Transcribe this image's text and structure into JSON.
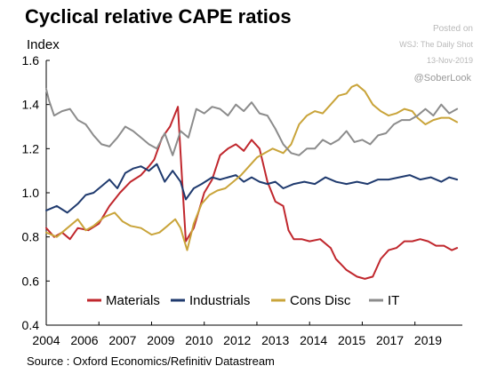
{
  "header": {
    "title": "Cyclical relative CAPE ratios",
    "posted_on": "Posted on",
    "publisher": "WSJ: The Daily Shot",
    "date": "13-Nov-2019",
    "handle": "@SoberLook"
  },
  "footer": {
    "source": "Source : Oxford Economics/Refinitiv Datastream"
  },
  "chart_data": {
    "type": "line",
    "title": "Cyclical relative CAPE ratios",
    "ylabel": "Index",
    "xlabel": "",
    "ylim": [
      0.4,
      1.6
    ],
    "yticks": [
      0.4,
      0.6,
      0.8,
      1.0,
      1.2,
      1.4,
      1.6
    ],
    "ytick_labels": [
      "0.4",
      "0.6",
      "0.8",
      "1.0",
      "1.2",
      "1.4",
      "1.6"
    ],
    "xlim": [
      2004,
      2019.8
    ],
    "xticks": [
      2004,
      2006,
      2008,
      2010,
      2012,
      2014,
      2016,
      2018
    ],
    "xtick_labels": [
      "2004",
      "2006",
      "2007",
      "2009",
      "2010",
      "2012",
      "2013",
      "2014",
      "2015",
      "2017",
      "2019"
    ],
    "xtick_positions": [
      2004,
      2005.45,
      2006.9,
      2008.35,
      2009.8,
      2011.25,
      2012.7,
      2014.15,
      2015.6,
      2017.05,
      2018.5
    ],
    "legend_position": "bottom",
    "grid": false,
    "series": [
      {
        "name": "Materials",
        "color": "#c0272d",
        "x": [
          2004,
          2004.3,
          2004.6,
          2004.9,
          2005.2,
          2005.6,
          2006.0,
          2006.4,
          2006.8,
          2007.2,
          2007.6,
          2007.9,
          2008.1,
          2008.4,
          2008.7,
          2009.0,
          2009.15,
          2009.3,
          2009.6,
          2010.0,
          2010.3,
          2010.6,
          2010.9,
          2011.2,
          2011.5,
          2011.8,
          2012.1,
          2012.4,
          2012.7,
          2013.0,
          2013.2,
          2013.4,
          2013.7,
          2014.0,
          2014.4,
          2014.8,
          2015.0,
          2015.4,
          2015.8,
          2016.1,
          2016.4,
          2016.7,
          2017.0,
          2017.3,
          2017.6,
          2017.9,
          2018.2,
          2018.5,
          2018.8,
          2019.1,
          2019.4,
          2019.6
        ],
        "values": [
          0.84,
          0.8,
          0.82,
          0.79,
          0.84,
          0.83,
          0.86,
          0.94,
          1.0,
          1.05,
          1.08,
          1.12,
          1.15,
          1.25,
          1.3,
          1.39,
          1.08,
          0.78,
          0.84,
          1.0,
          1.06,
          1.17,
          1.2,
          1.22,
          1.19,
          1.24,
          1.2,
          1.05,
          0.96,
          0.94,
          0.83,
          0.79,
          0.79,
          0.78,
          0.79,
          0.75,
          0.7,
          0.65,
          0.62,
          0.61,
          0.62,
          0.7,
          0.74,
          0.75,
          0.78,
          0.78,
          0.79,
          0.78,
          0.76,
          0.76,
          0.74,
          0.75
        ]
      },
      {
        "name": "Industrials",
        "color": "#1f3a6e",
        "x": [
          2004,
          2004.4,
          2004.8,
          2005.2,
          2005.5,
          2005.8,
          2006.1,
          2006.4,
          2006.7,
          2007.0,
          2007.3,
          2007.6,
          2007.9,
          2008.2,
          2008.5,
          2008.8,
          2009.1,
          2009.3,
          2009.6,
          2009.9,
          2010.3,
          2010.6,
          2010.9,
          2011.2,
          2011.5,
          2011.8,
          2012.1,
          2012.4,
          2012.7,
          2013.0,
          2013.4,
          2013.8,
          2014.2,
          2014.6,
          2015.0,
          2015.4,
          2015.8,
          2016.2,
          2016.6,
          2017.0,
          2017.4,
          2017.8,
          2018.2,
          2018.6,
          2019.0,
          2019.3,
          2019.6
        ],
        "values": [
          0.92,
          0.94,
          0.91,
          0.95,
          0.99,
          1.0,
          1.03,
          1.06,
          1.02,
          1.09,
          1.11,
          1.12,
          1.1,
          1.13,
          1.05,
          1.1,
          1.05,
          0.97,
          1.02,
          1.04,
          1.07,
          1.06,
          1.07,
          1.08,
          1.05,
          1.07,
          1.05,
          1.04,
          1.05,
          1.02,
          1.04,
          1.05,
          1.04,
          1.07,
          1.05,
          1.04,
          1.05,
          1.04,
          1.06,
          1.06,
          1.07,
          1.08,
          1.06,
          1.07,
          1.05,
          1.07,
          1.06
        ]
      },
      {
        "name": "Cons Disc",
        "color": "#c9a43a",
        "x": [
          2004,
          2004.4,
          2004.8,
          2005.2,
          2005.5,
          2005.8,
          2006.2,
          2006.6,
          2006.9,
          2007.2,
          2007.6,
          2008.0,
          2008.3,
          2008.6,
          2008.9,
          2009.1,
          2009.2,
          2009.35,
          2009.6,
          2009.9,
          2010.2,
          2010.5,
          2010.8,
          2011.1,
          2011.4,
          2011.7,
          2012.0,
          2012.3,
          2012.6,
          2013.0,
          2013.3,
          2013.6,
          2013.9,
          2014.2,
          2014.5,
          2014.8,
          2015.1,
          2015.4,
          2015.6,
          2015.8,
          2016.1,
          2016.4,
          2016.7,
          2017.0,
          2017.3,
          2017.6,
          2017.9,
          2018.1,
          2018.4,
          2018.7,
          2019.0,
          2019.3,
          2019.6
        ],
        "values": [
          0.82,
          0.8,
          0.84,
          0.88,
          0.83,
          0.85,
          0.89,
          0.91,
          0.87,
          0.85,
          0.84,
          0.81,
          0.82,
          0.85,
          0.88,
          0.84,
          0.8,
          0.74,
          0.86,
          0.95,
          0.99,
          1.01,
          1.02,
          1.05,
          1.08,
          1.12,
          1.16,
          1.18,
          1.2,
          1.18,
          1.22,
          1.31,
          1.35,
          1.37,
          1.36,
          1.4,
          1.44,
          1.45,
          1.48,
          1.49,
          1.46,
          1.4,
          1.37,
          1.35,
          1.36,
          1.38,
          1.37,
          1.34,
          1.31,
          1.33,
          1.34,
          1.34,
          1.32
        ]
      },
      {
        "name": "IT",
        "color": "#8c8c8c",
        "x": [
          2004,
          2004.1,
          2004.3,
          2004.6,
          2004.9,
          2005.2,
          2005.5,
          2005.8,
          2006.1,
          2006.4,
          2006.7,
          2007.0,
          2007.3,
          2007.6,
          2007.9,
          2008.2,
          2008.5,
          2008.8,
          2009.1,
          2009.4,
          2009.7,
          2010.0,
          2010.3,
          2010.6,
          2010.9,
          2011.2,
          2011.5,
          2011.8,
          2012.1,
          2012.4,
          2012.7,
          2013.0,
          2013.3,
          2013.6,
          2013.9,
          2014.2,
          2014.5,
          2014.8,
          2015.1,
          2015.4,
          2015.7,
          2016.0,
          2016.3,
          2016.6,
          2016.9,
          2017.2,
          2017.5,
          2017.8,
          2018.1,
          2018.4,
          2018.7,
          2019.0,
          2019.3,
          2019.6
        ],
        "values": [
          1.47,
          1.42,
          1.35,
          1.37,
          1.38,
          1.33,
          1.31,
          1.26,
          1.22,
          1.21,
          1.25,
          1.3,
          1.28,
          1.25,
          1.22,
          1.2,
          1.27,
          1.17,
          1.28,
          1.25,
          1.38,
          1.36,
          1.39,
          1.38,
          1.35,
          1.4,
          1.37,
          1.41,
          1.36,
          1.35,
          1.29,
          1.22,
          1.18,
          1.17,
          1.2,
          1.2,
          1.24,
          1.22,
          1.24,
          1.28,
          1.23,
          1.24,
          1.22,
          1.26,
          1.27,
          1.31,
          1.33,
          1.33,
          1.35,
          1.38,
          1.35,
          1.4,
          1.36,
          1.38
        ]
      }
    ]
  }
}
